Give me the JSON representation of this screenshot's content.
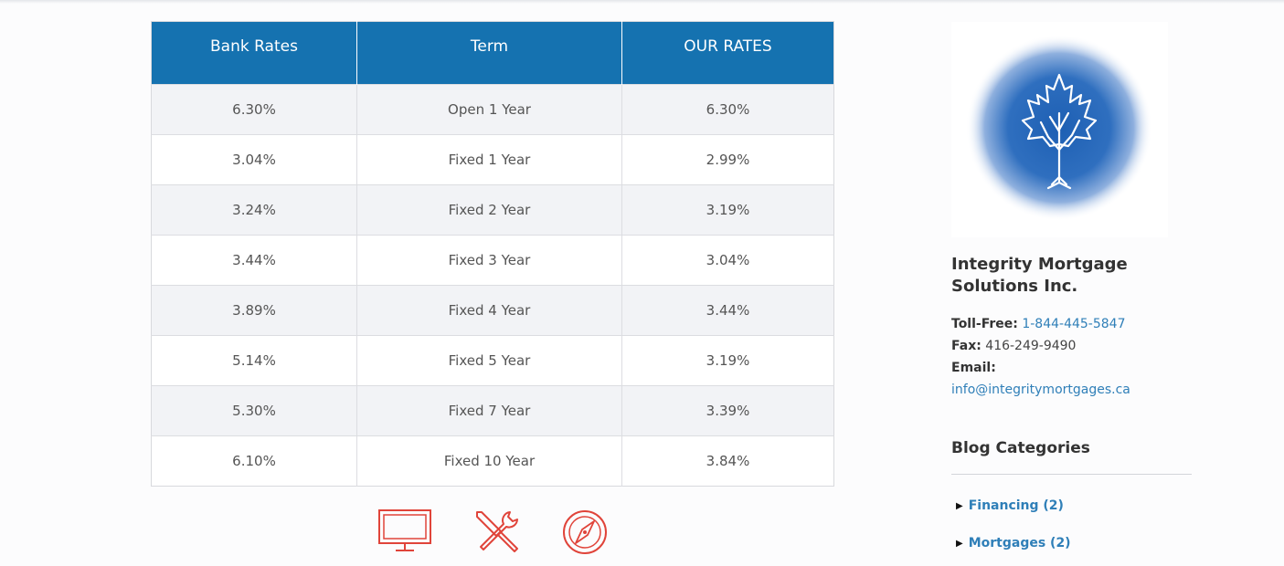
{
  "rates_table": {
    "headers": [
      "Bank Rates",
      "Term",
      "OUR RATES"
    ],
    "rows": [
      {
        "bank": "6.30%",
        "term": "Open 1 Year",
        "ours": "6.30%"
      },
      {
        "bank": "3.04%",
        "term": "Fixed 1 Year",
        "ours": "2.99%"
      },
      {
        "bank": "3.24%",
        "term": "Fixed 2 Year",
        "ours": "3.19%"
      },
      {
        "bank": "3.44%",
        "term": "Fixed 3 Year",
        "ours": "3.04%"
      },
      {
        "bank": "3.89%",
        "term": "Fixed 4 Year",
        "ours": "3.44%"
      },
      {
        "bank": "5.14%",
        "term": "Fixed 5 Year",
        "ours": "3.19%"
      },
      {
        "bank": "5.30%",
        "term": "Fixed 7 Year",
        "ours": "3.39%"
      },
      {
        "bank": "6.10%",
        "term": "Fixed 10 Year",
        "ours": "3.84%"
      }
    ]
  },
  "feature_icons": [
    "monitor-icon",
    "tools-icon",
    "compass-icon"
  ],
  "sidebar": {
    "logo_icon": "maple-leaf-tree-logo",
    "company_name": "Integrity Mortgage Solutions Inc.",
    "toll_free_label": "Toll-Free:",
    "toll_free_value": "1-844-445-5847",
    "fax_label": "Fax:",
    "fax_value": "416-249-9490",
    "email_label": "Email:",
    "email_value": "info@integritymortgages.ca",
    "blog_title": "Blog Categories",
    "categories": [
      {
        "label": "Financing (2)"
      },
      {
        "label": "Mortgages (2)"
      }
    ]
  },
  "colors": {
    "header_blue": "#1572b0",
    "link_blue": "#2f7fb8",
    "icon_red": "#e0443a"
  }
}
